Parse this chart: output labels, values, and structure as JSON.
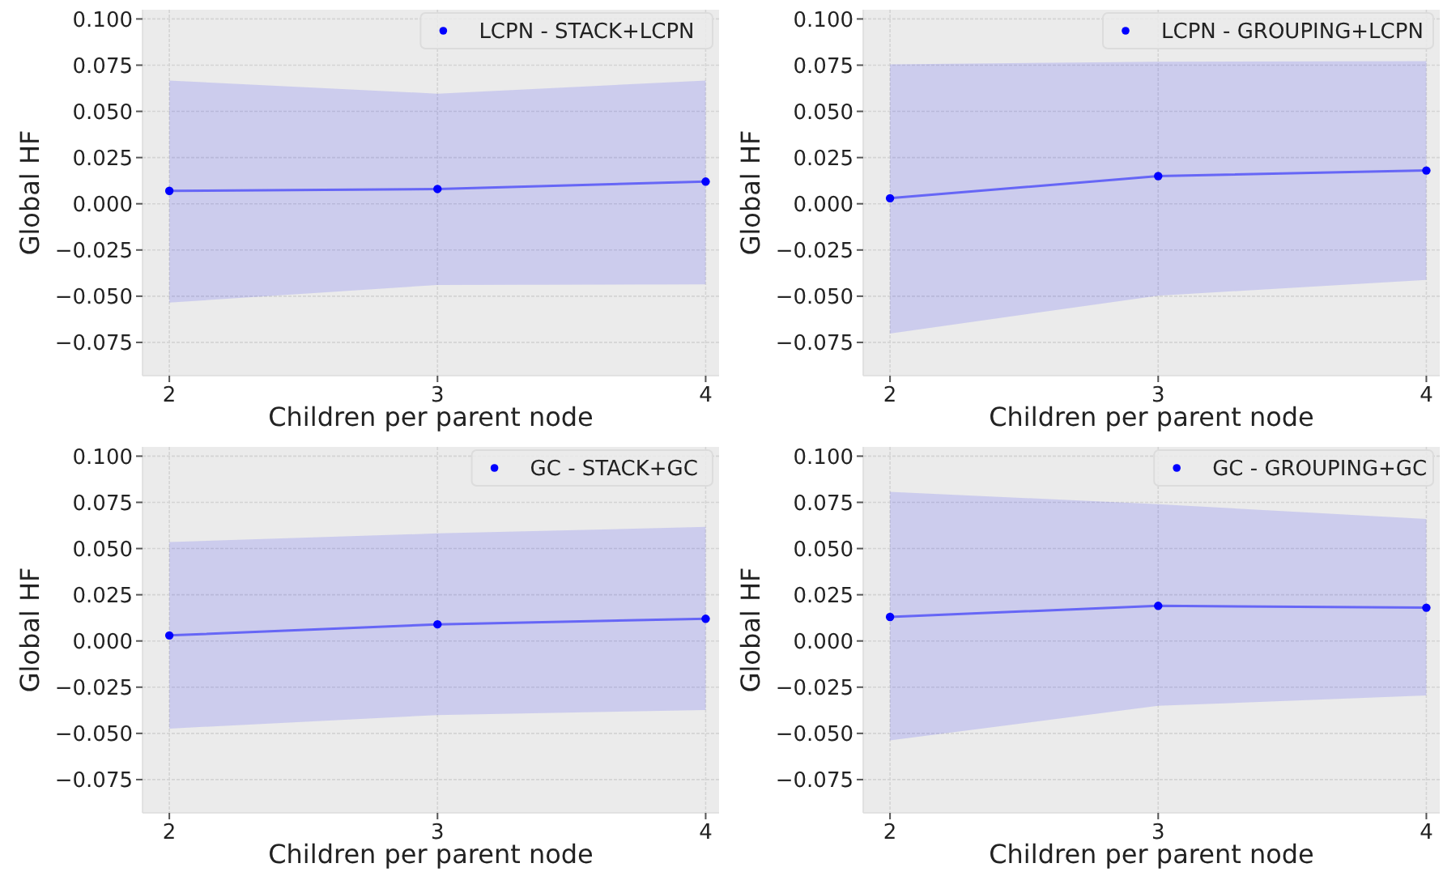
{
  "chart_data": [
    {
      "type": "line",
      "x": [
        2,
        3,
        4
      ],
      "xlabel": "Children per parent node",
      "ylabel": "Global HF",
      "xlim": [
        1.9,
        4.05
      ],
      "ylim": [
        -0.093,
        0.105
      ],
      "xticks": [
        2,
        3,
        4
      ],
      "yticks": [
        {
          "value": -0.075,
          "label": "−0.075"
        },
        {
          "value": -0.05,
          "label": "−0.050"
        },
        {
          "value": -0.025,
          "label": "−0.025"
        },
        {
          "value": 0,
          "label": "0.000"
        },
        {
          "value": 0.025,
          "label": "0.025"
        },
        {
          "value": 0.05,
          "label": "0.050"
        },
        {
          "value": 0.075,
          "label": "0.075"
        },
        {
          "value": 0.1,
          "label": "0.100"
        }
      ],
      "grid": true,
      "legend": "top right",
      "marker": "circle",
      "series": [
        {
          "name": "LCPN - STACK+LCPN",
          "color": "#0000ff",
          "values": [
            0.007,
            0.008,
            0.012
          ],
          "lower": [
            -0.0535,
            -0.0439,
            -0.0436
          ],
          "upper": [
            0.0667,
            0.0596,
            0.0667
          ]
        }
      ]
    },
    {
      "type": "line",
      "x": [
        2,
        3,
        4
      ],
      "xlabel": "Children per parent node",
      "ylabel": "Global HF",
      "xlim": [
        1.9,
        4.05
      ],
      "ylim": [
        -0.093,
        0.105
      ],
      "xticks": [
        2,
        3,
        4
      ],
      "yticks": [
        {
          "value": -0.075,
          "label": "−0.075"
        },
        {
          "value": -0.05,
          "label": "−0.050"
        },
        {
          "value": -0.025,
          "label": "−0.025"
        },
        {
          "value": 0,
          "label": "0.000"
        },
        {
          "value": 0.025,
          "label": "0.025"
        },
        {
          "value": 0.05,
          "label": "0.050"
        },
        {
          "value": 0.075,
          "label": "0.075"
        },
        {
          "value": 0.1,
          "label": "0.100"
        }
      ],
      "grid": true,
      "legend": "top right",
      "marker": "circle",
      "series": [
        {
          "name": "LCPN - GROUPING+LCPN",
          "color": "#0000ff",
          "values": [
            0.003,
            0.015,
            0.018
          ],
          "lower": [
            -0.0702,
            -0.0497,
            -0.0412
          ],
          "upper": [
            0.0754,
            0.0769,
            0.0772
          ]
        }
      ]
    },
    {
      "type": "line",
      "x": [
        2,
        3,
        4
      ],
      "xlabel": "Children per parent node",
      "ylabel": "Global HF",
      "xlim": [
        1.9,
        4.05
      ],
      "ylim": [
        -0.093,
        0.105
      ],
      "xticks": [
        2,
        3,
        4
      ],
      "yticks": [
        {
          "value": -0.075,
          "label": "−0.075"
        },
        {
          "value": -0.05,
          "label": "−0.050"
        },
        {
          "value": -0.025,
          "label": "−0.025"
        },
        {
          "value": 0,
          "label": "0.000"
        },
        {
          "value": 0.025,
          "label": "0.025"
        },
        {
          "value": 0.05,
          "label": "0.050"
        },
        {
          "value": 0.075,
          "label": "0.075"
        },
        {
          "value": 0.1,
          "label": "0.100"
        }
      ],
      "grid": true,
      "legend": "top right",
      "marker": "circle",
      "series": [
        {
          "name": "GC - STACK+GC",
          "color": "#0000ff",
          "values": [
            0.003,
            0.009,
            0.012
          ],
          "lower": [
            -0.0474,
            -0.0401,
            -0.0374
          ],
          "upper": [
            0.0535,
            0.0582,
            0.0617
          ]
        }
      ]
    },
    {
      "type": "line",
      "x": [
        2,
        3,
        4
      ],
      "xlabel": "Children per parent node",
      "ylabel": "Global HF",
      "xlim": [
        1.9,
        4.05
      ],
      "ylim": [
        -0.093,
        0.105
      ],
      "xticks": [
        2,
        3,
        4
      ],
      "yticks": [
        {
          "value": -0.075,
          "label": "−0.075"
        },
        {
          "value": -0.05,
          "label": "−0.050"
        },
        {
          "value": -0.025,
          "label": "−0.025"
        },
        {
          "value": 0,
          "label": "0.000"
        },
        {
          "value": 0.025,
          "label": "0.025"
        },
        {
          "value": 0.05,
          "label": "0.050"
        },
        {
          "value": 0.075,
          "label": "0.075"
        },
        {
          "value": 0.1,
          "label": "0.100"
        }
      ],
      "grid": true,
      "legend": "top right",
      "marker": "circle",
      "series": [
        {
          "name": "GC - GROUPING+GC",
          "color": "#0000ff",
          "values": [
            0.013,
            0.019,
            0.018
          ],
          "lower": [
            -0.0538,
            -0.0351,
            -0.0295
          ],
          "upper": [
            0.0807,
            0.074,
            0.066
          ]
        }
      ]
    }
  ]
}
